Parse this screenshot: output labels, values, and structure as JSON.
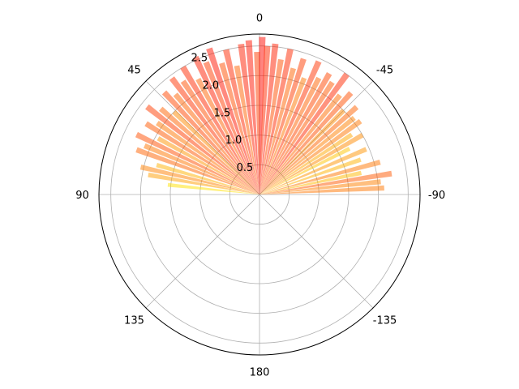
{
  "chart_data": {
    "type": "polar_bar",
    "theta_zero_location": "N",
    "theta_direction": "clockwise",
    "theta_range_deg": [
      -90,
      90
    ],
    "r_max": 2.7,
    "r_ticks": [
      0.5,
      1.0,
      1.5,
      2.0,
      2.5
    ],
    "r_tick_labels": [
      "0.5",
      "1.0",
      "1.5",
      "2.0",
      "2.5"
    ],
    "theta_ticks_deg": [
      0,
      -45,
      -90,
      -135,
      180,
      135,
      90,
      45
    ],
    "theta_tick_labels": [
      "0",
      "-45",
      "-90",
      "-135",
      "180",
      "135",
      "90",
      "45"
    ],
    "grid": true,
    "colormap": "autumn_r",
    "bar_alpha": 0.5,
    "bars": [
      {
        "theta": 84,
        "r": 1.55
      },
      {
        "theta": 80,
        "r": 1.9
      },
      {
        "theta": 77,
        "r": 2.05
      },
      {
        "theta": 74,
        "r": 1.8
      },
      {
        "theta": 70,
        "r": 2.2
      },
      {
        "theta": 67,
        "r": 2.1
      },
      {
        "theta": 64,
        "r": 2.3
      },
      {
        "theta": 61,
        "r": 1.95
      },
      {
        "theta": 58,
        "r": 2.25
      },
      {
        "theta": 55,
        "r": 2.1
      },
      {
        "theta": 52,
        "r": 2.4
      },
      {
        "theta": 49,
        "r": 2.2
      },
      {
        "theta": 46,
        "r": 2.0
      },
      {
        "theta": 43,
        "r": 2.35
      },
      {
        "theta": 40,
        "r": 2.2
      },
      {
        "theta": 37,
        "r": 2.45
      },
      {
        "theta": 34,
        "r": 2.3
      },
      {
        "theta": 31,
        "r": 2.5
      },
      {
        "theta": 28,
        "r": 2.2
      },
      {
        "theta": 25,
        "r": 2.55
      },
      {
        "theta": 22,
        "r": 2.4
      },
      {
        "theta": 19,
        "r": 2.6
      },
      {
        "theta": 16,
        "r": 2.3
      },
      {
        "theta": 13,
        "r": 2.5
      },
      {
        "theta": 10,
        "r": 2.2
      },
      {
        "theta": 7,
        "r": 2.55
      },
      {
        "theta": 4,
        "r": 2.6
      },
      {
        "theta": 1,
        "r": 2.4
      },
      {
        "theta": -1,
        "r": 2.65
      },
      {
        "theta": -3,
        "r": 2.5
      },
      {
        "theta": -6,
        "r": 2.55
      },
      {
        "theta": -9,
        "r": 2.3
      },
      {
        "theta": -12,
        "r": 2.5
      },
      {
        "theta": -15,
        "r": 2.2
      },
      {
        "theta": -18,
        "r": 2.4
      },
      {
        "theta": -21,
        "r": 2.1
      },
      {
        "theta": -24,
        "r": 2.45
      },
      {
        "theta": -27,
        "r": 2.2
      },
      {
        "theta": -30,
        "r": 2.35
      },
      {
        "theta": -33,
        "r": 2.25
      },
      {
        "theta": -36,
        "r": 2.5
      },
      {
        "theta": -39,
        "r": 2.15
      },
      {
        "theta": -42,
        "r": 2.3
      },
      {
        "theta": -45,
        "r": 2.0
      },
      {
        "theta": -48,
        "r": 2.2
      },
      {
        "theta": -51,
        "r": 2.05
      },
      {
        "theta": -54,
        "r": 2.1
      },
      {
        "theta": -57,
        "r": 1.85
      },
      {
        "theta": -60,
        "r": 2.0
      },
      {
        "theta": -63,
        "r": 1.7
      },
      {
        "theta": -67,
        "r": 1.95
      },
      {
        "theta": -71,
        "r": 1.8
      },
      {
        "theta": -75,
        "r": 2.1
      },
      {
        "theta": -78,
        "r": 1.75
      },
      {
        "theta": -81,
        "r": 2.25
      },
      {
        "theta": -84,
        "r": 2.05
      },
      {
        "theta": -87,
        "r": 2.1
      }
    ]
  }
}
